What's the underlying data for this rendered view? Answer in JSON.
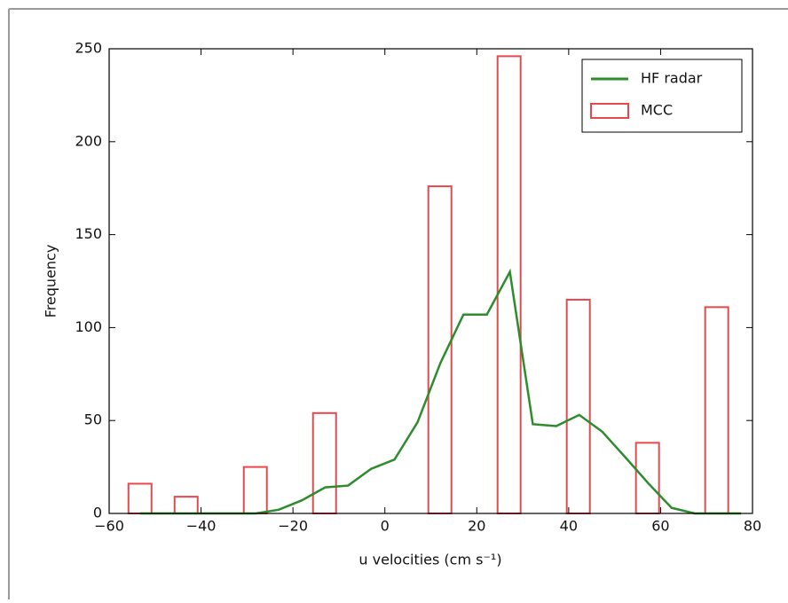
{
  "chart_data": {
    "type": "histogram",
    "x_label": "u velocities (cm s⁻¹)",
    "y_label": "Frequency",
    "xlim": [
      -60,
      80
    ],
    "ylim": [
      0,
      250
    ],
    "xticks": [
      {
        "value": -60,
        "label": "−60"
      },
      {
        "value": -40,
        "label": "−40"
      },
      {
        "value": -20,
        "label": "−20"
      },
      0,
      20,
      40,
      60,
      80
    ],
    "yticks": [
      0,
      50,
      100,
      150,
      200,
      250
    ],
    "legend": "upper right",
    "series": [
      {
        "name": "HF radar",
        "type": "line",
        "color": "#2e8b2e",
        "x": [
          -53.3,
          -48.3,
          -43.2,
          -38.2,
          -33.2,
          -28.1,
          -23.1,
          -18.1,
          -13.0,
          -8.0,
          -3.0,
          2.1,
          7.1,
          12.1,
          17.1,
          22.2,
          27.2,
          32.2,
          37.3,
          42.3,
          47.3,
          52.4,
          57.4,
          62.4,
          67.4,
          72.5,
          77.5
        ],
        "values": [
          0,
          0,
          0,
          0,
          0,
          0,
          2,
          7,
          14,
          15,
          24,
          29,
          49,
          81,
          107,
          107,
          130,
          48,
          47,
          53,
          44,
          30,
          16,
          3,
          0,
          0,
          0
        ]
      },
      {
        "name": "MCC",
        "type": "histogram",
        "color": "#e8474b",
        "bins": [
          -55.8,
          -50.78,
          -45.76,
          -40.74,
          -35.72,
          -30.7,
          -25.68,
          -20.66,
          -15.64,
          -10.62,
          -5.6,
          -0.58,
          4.44,
          9.46,
          14.48,
          19.5,
          24.52,
          29.54,
          34.56,
          39.58,
          44.6,
          49.62,
          54.64,
          59.66,
          64.68,
          69.7,
          74.72
        ],
        "values": [
          16,
          0,
          9,
          0,
          0,
          25,
          0,
          0,
          54,
          0,
          0,
          0,
          0,
          176,
          0,
          0,
          246,
          0,
          0,
          115,
          0,
          0,
          38,
          0,
          0,
          111
        ]
      }
    ]
  }
}
